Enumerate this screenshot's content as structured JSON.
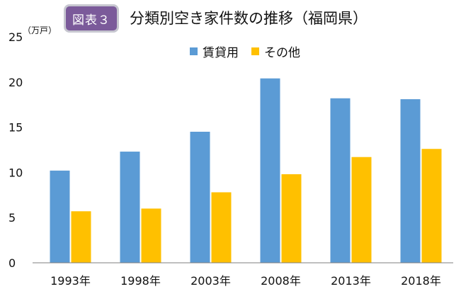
{
  "header": {
    "badge": "図表３",
    "title": "分類別空き家件数の推移（福岡県）"
  },
  "colors": {
    "rental": "#5b9bd5",
    "other": "#ffc000",
    "badge": "#7b5a9a",
    "axis": "#7f7f7f"
  },
  "chart_data": {
    "type": "bar",
    "title": "分類別空き家件数の推移（福岡県）",
    "unit_label": "（万戸）",
    "categories": [
      "1993年",
      "1998年",
      "2003年",
      "2008年",
      "2013年",
      "2018年"
    ],
    "series": [
      {
        "name": "賃貸用",
        "color": "#5b9bd5",
        "values": [
          10.2,
          12.3,
          14.5,
          20.4,
          18.2,
          18.1
        ]
      },
      {
        "name": "その他",
        "color": "#ffc000",
        "values": [
          5.7,
          6.0,
          7.8,
          9.8,
          11.7,
          12.6
        ]
      }
    ],
    "ylim": [
      0,
      25
    ],
    "yticks": [
      0,
      5,
      10,
      15,
      20,
      25
    ],
    "grid": false,
    "legend_position": "top-center"
  }
}
